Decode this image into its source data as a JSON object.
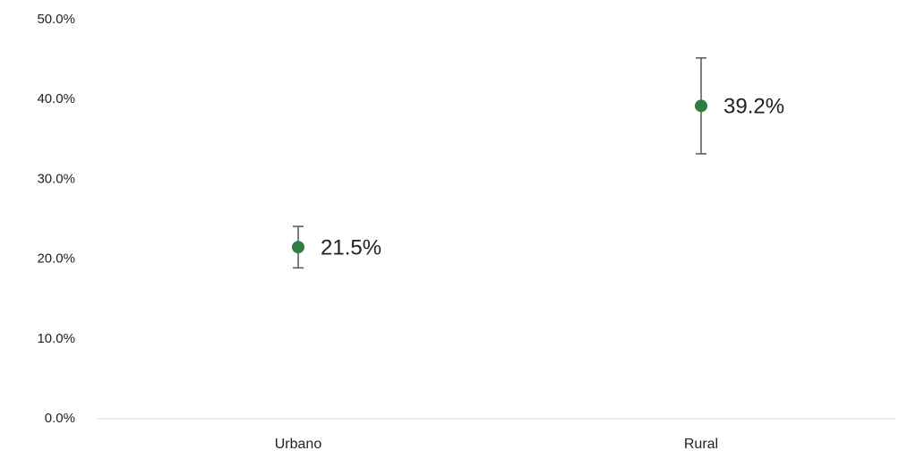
{
  "chart_data": {
    "type": "dot",
    "categories": [
      "Urbano",
      "Rural"
    ],
    "values": [
      21.5,
      39.2
    ],
    "value_labels": [
      "21.5%",
      "39.2%"
    ],
    "errors": [
      2.6,
      6.0
    ],
    "color": "#2f7d42",
    "error_color": "#555555",
    "ylim": [
      0,
      50
    ],
    "yticks": [
      {
        "value": 0,
        "label": "0.0%"
      },
      {
        "value": 10,
        "label": "10.0%"
      },
      {
        "value": 20,
        "label": "20.0%"
      },
      {
        "value": 30,
        "label": "30.0%"
      },
      {
        "value": 40,
        "label": "40.0%"
      },
      {
        "value": 50,
        "label": "50.0%"
      }
    ],
    "grid": false
  }
}
